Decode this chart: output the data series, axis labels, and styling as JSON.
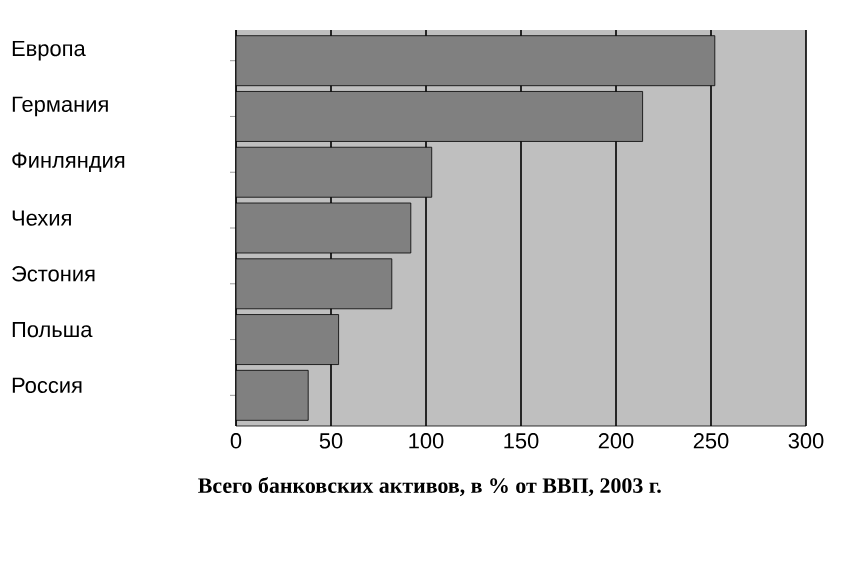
{
  "chart_data": {
    "type": "bar",
    "orientation": "horizontal",
    "xlabel": "Всего банковских активов, в % от ВВП, 2003 г.",
    "categories": [
      "Европа",
      "Германия",
      "Финляндия",
      "Чехия",
      "Эстония",
      "Польша",
      "Россия"
    ],
    "values": [
      252,
      214,
      103,
      92,
      82,
      54,
      38
    ],
    "color": "#808080",
    "xlim": [
      0,
      300
    ],
    "xticks": [
      0,
      50,
      100,
      150,
      200,
      250,
      300
    ],
    "grid": "x"
  }
}
